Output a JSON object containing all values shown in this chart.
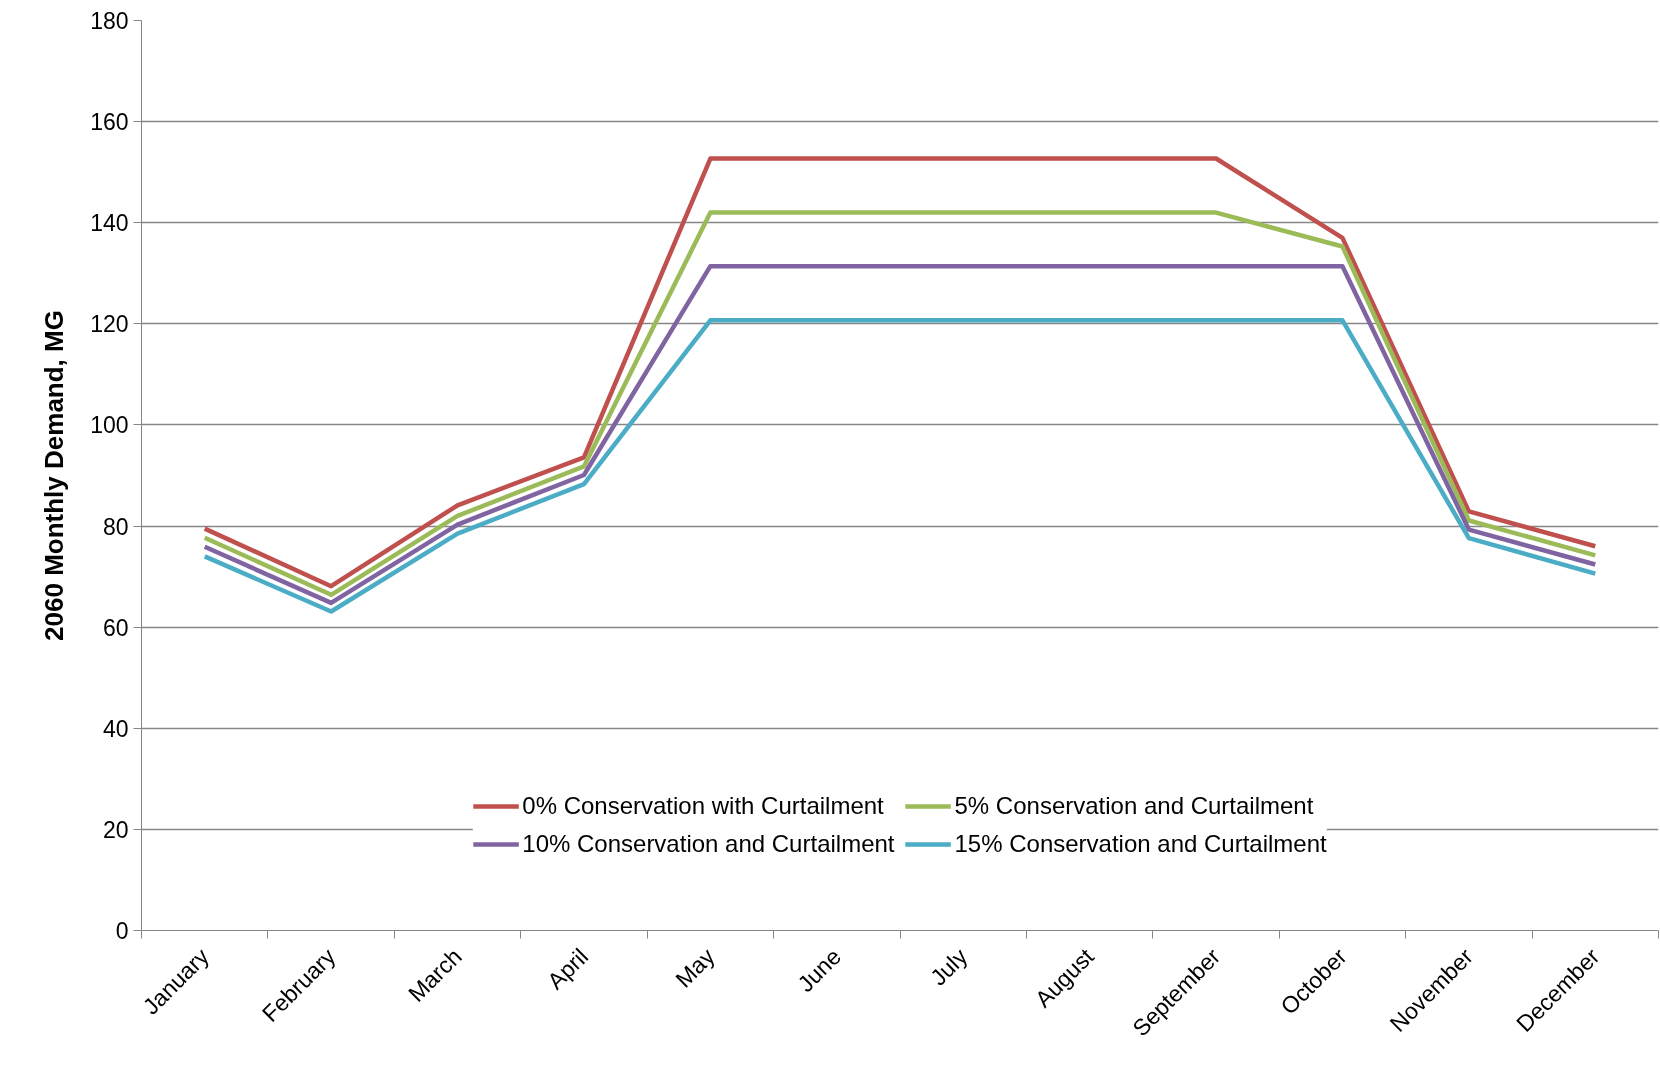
{
  "chart_data": {
    "type": "line",
    "ylabel": "2060 Monthly Demand, MG",
    "categories": [
      "January",
      "February",
      "March",
      "April",
      "May",
      "June",
      "July",
      "August",
      "September",
      "October",
      "November",
      "December"
    ],
    "series": [
      {
        "name": "0% Conservation with Curtailment",
        "color": "#c0504d",
        "values": [
          79.5,
          68.1,
          84.1,
          93.6,
          152.7,
          152.7,
          152.7,
          152.7,
          152.7,
          137.0,
          82.9,
          76.0
        ]
      },
      {
        "name": "5% Conservation and Curtailment",
        "color": "#9bbb59",
        "values": [
          77.7,
          66.4,
          82.0,
          91.8,
          142.0,
          142.0,
          142.0,
          142.0,
          142.0,
          135.3,
          81.1,
          74.2
        ]
      },
      {
        "name": "10% Conservation and Curtailment",
        "color": "#8064a2",
        "values": [
          75.9,
          64.8,
          80.3,
          90.1,
          131.4,
          131.4,
          131.4,
          131.4,
          131.4,
          131.4,
          79.3,
          72.4
        ]
      },
      {
        "name": "15% Conservation and Curtailment",
        "color": "#4bacc6",
        "values": [
          74.0,
          63.1,
          78.5,
          88.3,
          120.7,
          120.7,
          120.7,
          120.7,
          120.7,
          120.7,
          77.6,
          70.6
        ]
      }
    ],
    "ylim": [
      0,
      180
    ],
    "yticks": [
      0,
      20,
      40,
      60,
      80,
      100,
      120,
      140,
      160,
      180
    ],
    "grid": "y",
    "legend": "bottom"
  }
}
